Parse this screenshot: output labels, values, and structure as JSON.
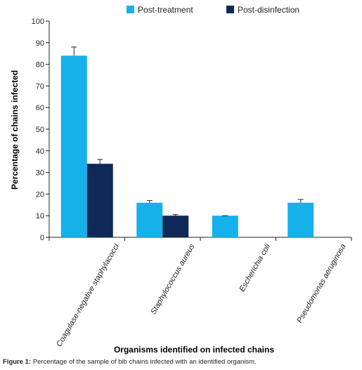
{
  "chart_data": {
    "type": "bar",
    "categories": [
      "Coagulase-negative staphylacocci",
      "Staphylococcus aureus",
      "Escherichia coli",
      "Pseudomonas aeruginosa"
    ],
    "series": [
      {
        "name": "Post-treatment",
        "color": "#16b1ea",
        "values": [
          84,
          16,
          10,
          16
        ],
        "errors": [
          4,
          1,
          0,
          1.5
        ]
      },
      {
        "name": "Post-disinfection",
        "color": "#0e2858",
        "values": [
          34,
          10,
          null,
          null
        ],
        "errors": [
          2,
          0.5,
          null,
          null
        ]
      }
    ],
    "ylabel": "Percentage of chains infected",
    "xlabel": "Organisms identified on infected chains",
    "ylim": [
      0,
      100
    ],
    "yticks": [
      0,
      10,
      20,
      30,
      40,
      50,
      60,
      70,
      80,
      90,
      100
    ],
    "legend_position": "top",
    "grid": false
  },
  "caption": {
    "label": "Figure 1:",
    "text": " Percentage of the sample of bib chains infected with an identified organism."
  }
}
